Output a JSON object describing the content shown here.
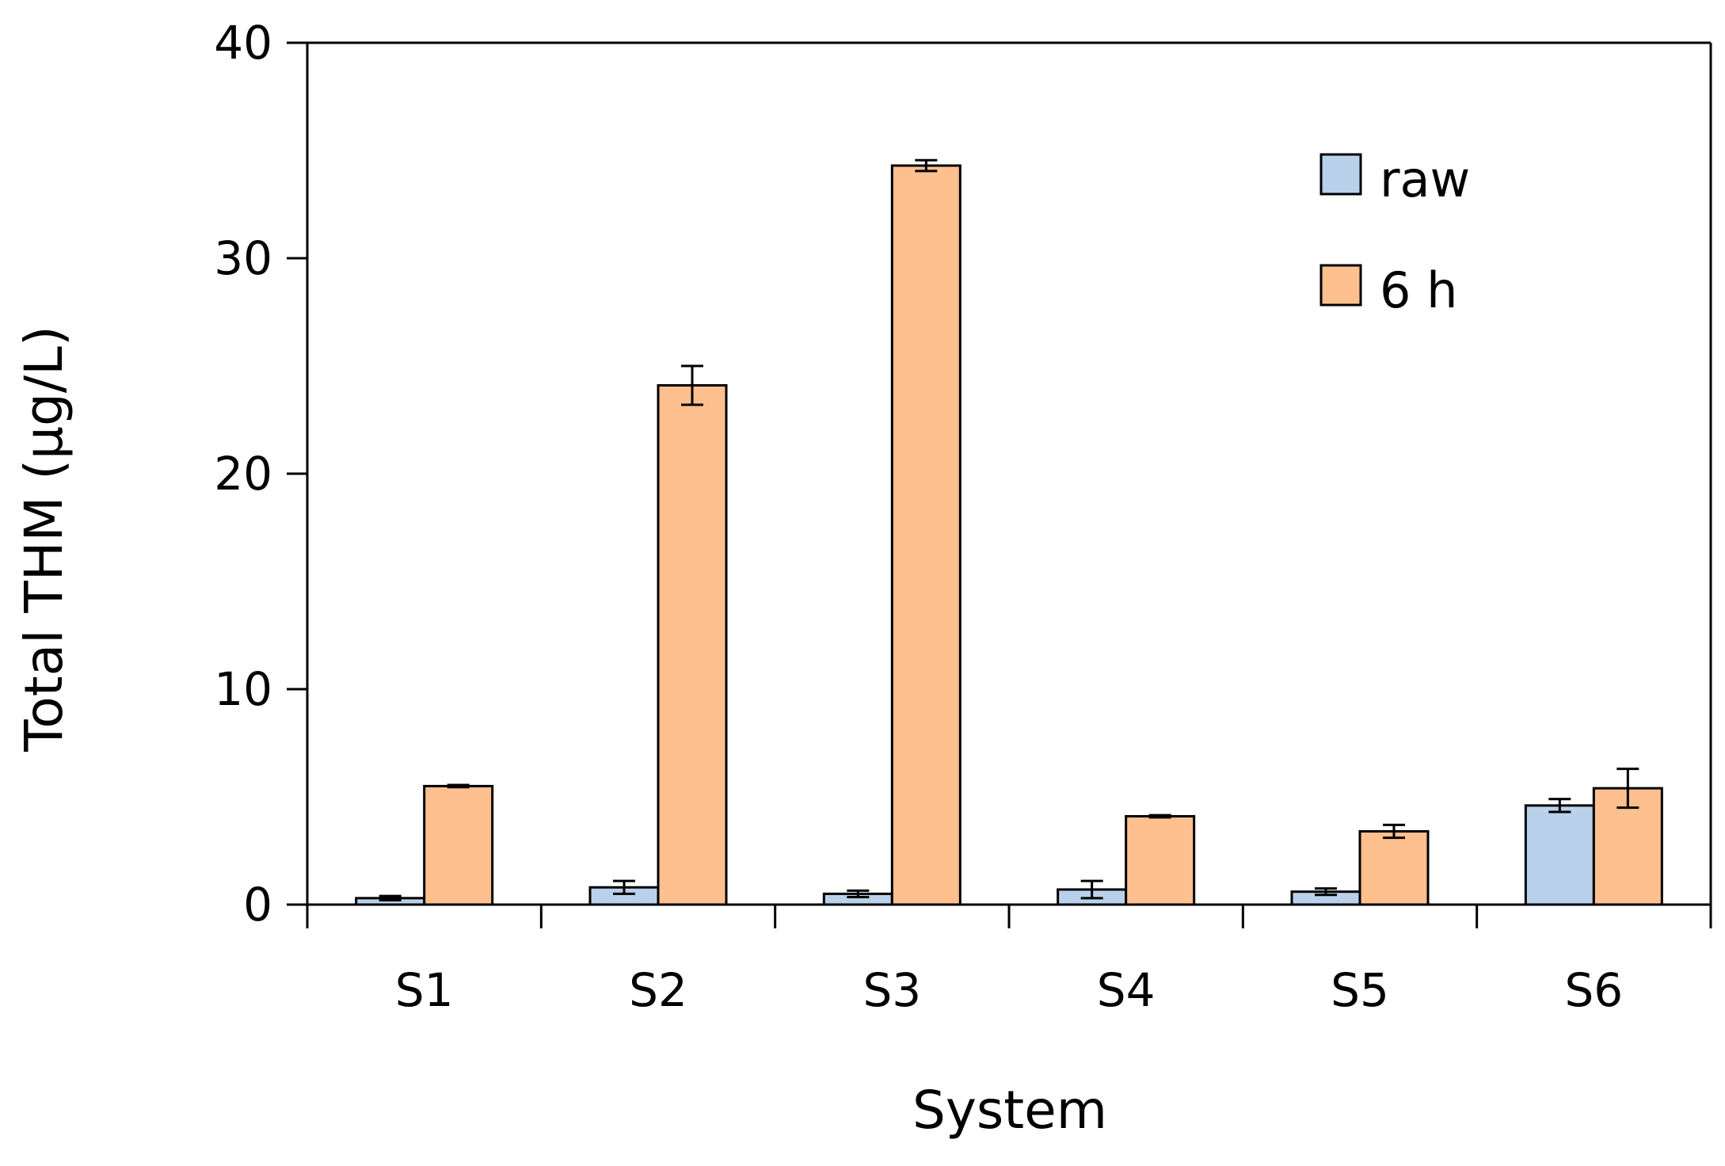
{
  "chart_data": {
    "type": "bar",
    "title": "",
    "xlabel": "System",
    "ylabel": "Total THM (μg/L)",
    "ylim": [
      0,
      40
    ],
    "yticks": [
      "0",
      "10",
      "20",
      "30",
      "40"
    ],
    "categories": [
      "S1",
      "S2",
      "S3",
      "S4",
      "S5",
      "S6"
    ],
    "series": [
      {
        "name": "raw",
        "color": "#b9d1ea",
        "values": [
          0.3,
          0.8,
          0.5,
          0.7,
          0.6,
          4.6
        ],
        "errors": [
          0.1,
          0.3,
          0.15,
          0.4,
          0.15,
          0.3
        ]
      },
      {
        "name": "6 h",
        "color": "#ffc08f",
        "values": [
          5.5,
          24.1,
          34.3,
          4.1,
          3.4,
          5.4
        ],
        "errors": [
          0.05,
          0.9,
          0.25,
          0.05,
          0.3,
          0.9
        ]
      }
    ],
    "legend_position": "top-right",
    "grid": false,
    "error_bars": true
  }
}
